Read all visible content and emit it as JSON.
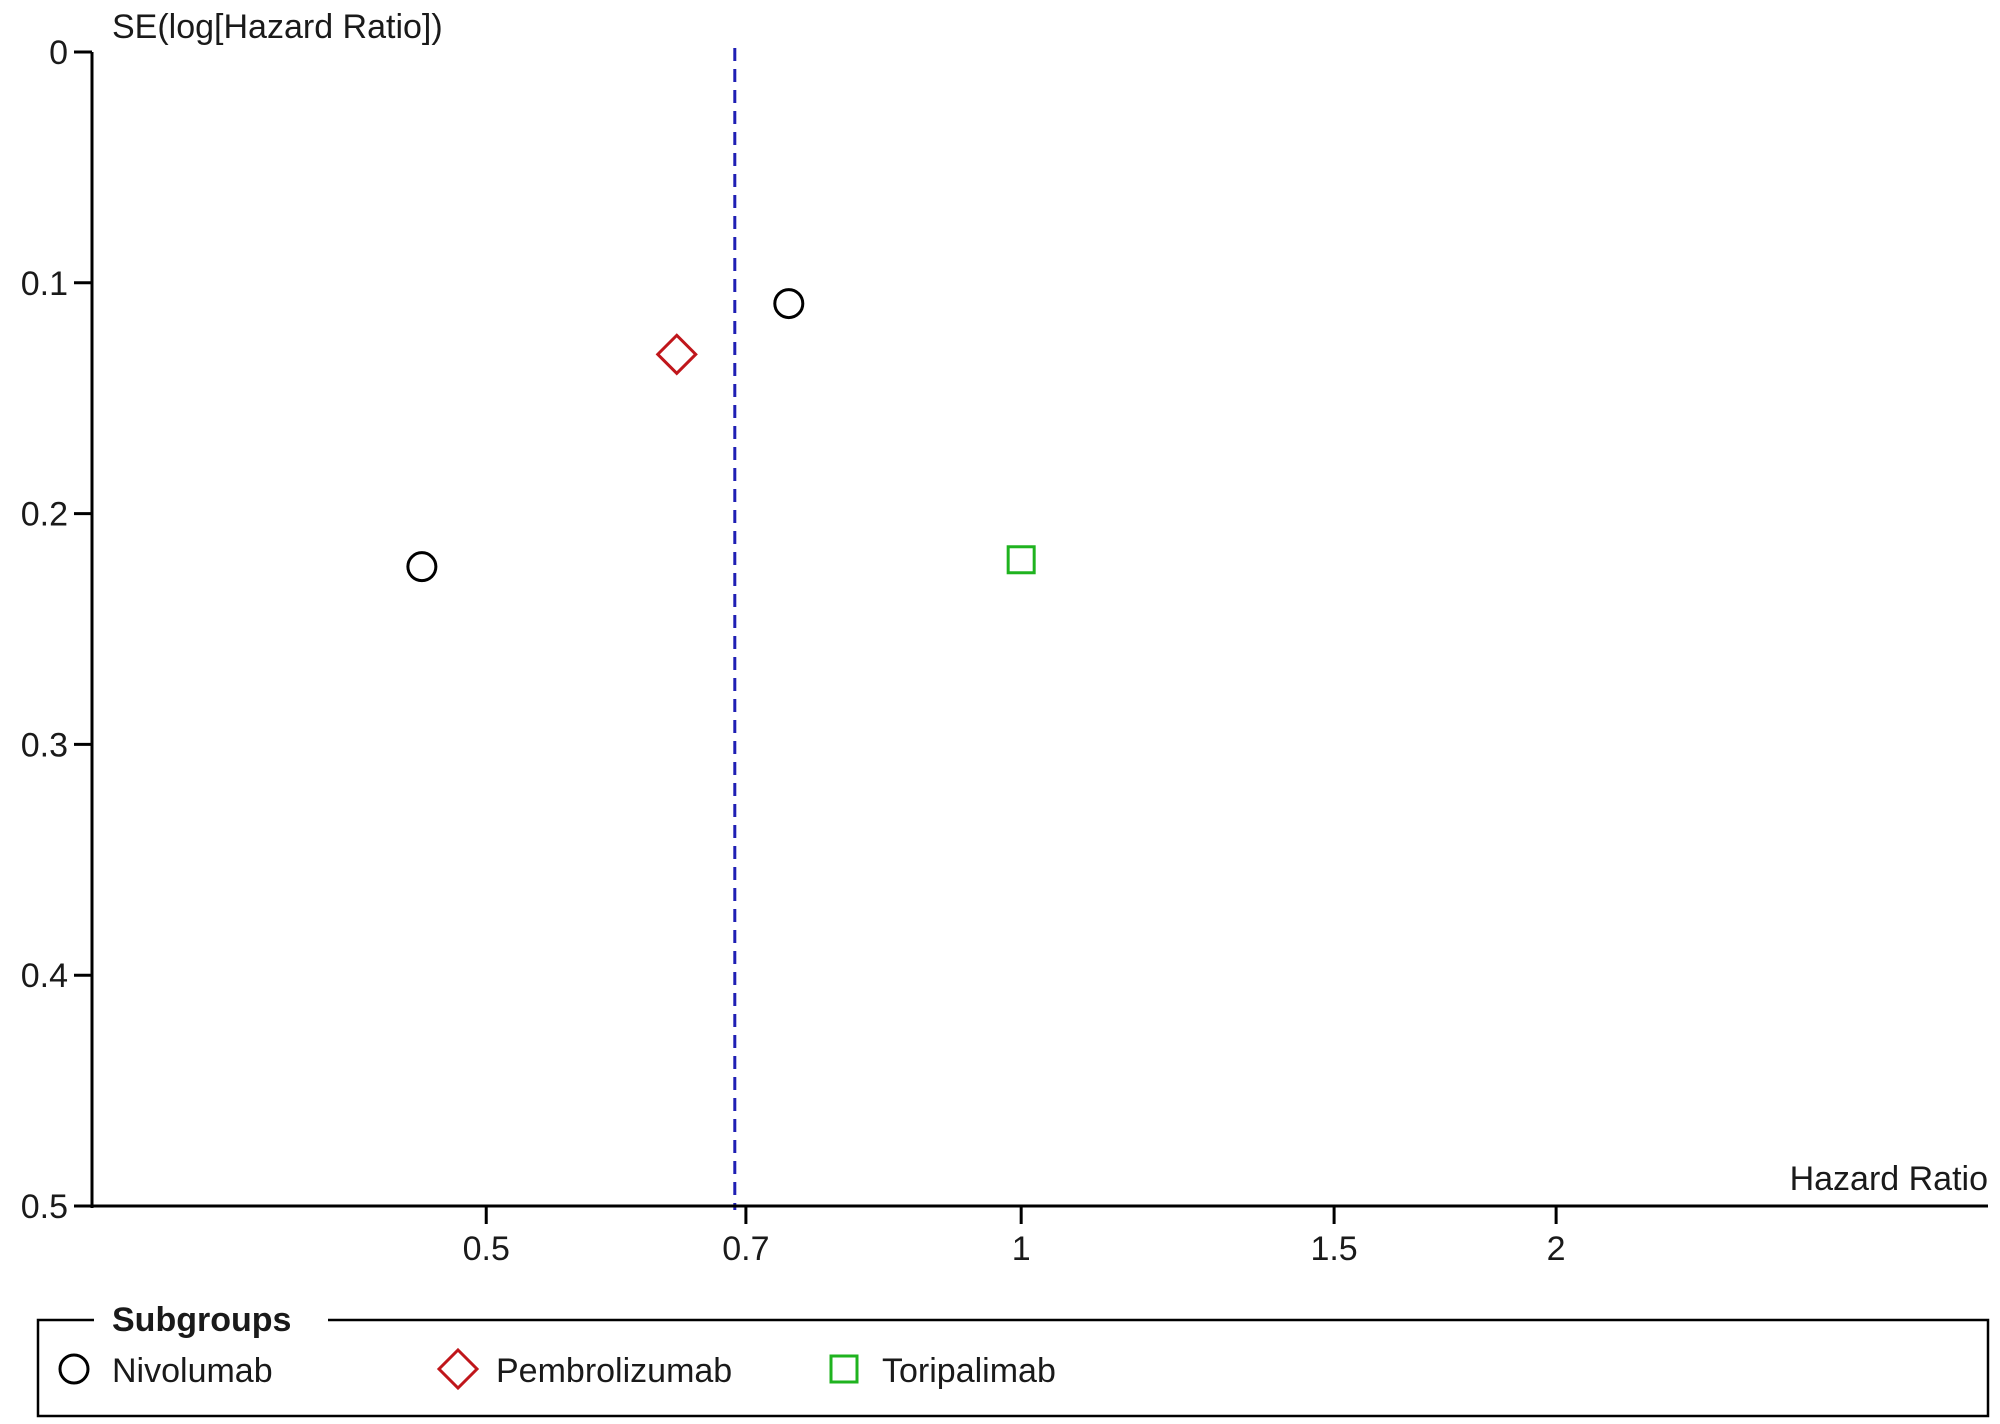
{
  "chart_data": {
    "type": "scatter",
    "subtype": "funnel plot",
    "xlabel": "Hazard Ratio",
    "ylabel": "SE(log[Hazard Ratio])",
    "x_scale": "log",
    "xlim": [
      0.3,
      3.5
    ],
    "ylim": [
      0.5,
      0
    ],
    "y_reversed": true,
    "x_ticks": [
      0.5,
      0.7,
      1,
      1.5,
      2
    ],
    "x_tick_labels": [
      "0.5",
      "0.7",
      "1",
      "1.5",
      "2"
    ],
    "y_ticks": [
      0,
      0.1,
      0.2,
      0.3,
      0.4,
      0.5
    ],
    "y_tick_labels": [
      "0",
      "0.1",
      "0.2",
      "0.3",
      "0.4",
      "0.5"
    ],
    "reference_line": {
      "x": 0.69,
      "style": "dashed",
      "color": "#1f1fb4"
    },
    "grid": false,
    "legend": {
      "title": "Subgroups",
      "placement": "bottom"
    },
    "series": [
      {
        "name": "Nivolumab",
        "marker": "circle",
        "color": "#000000",
        "points": [
          {
            "x": 0.74,
            "y": 0.109
          },
          {
            "x": 0.46,
            "y": 0.223
          }
        ]
      },
      {
        "name": "Pembrolizumab",
        "marker": "diamond",
        "color": "#c0161b",
        "points": [
          {
            "x": 0.64,
            "y": 0.131
          }
        ]
      },
      {
        "name": "Toripalimab",
        "marker": "square",
        "color": "#1fb31f",
        "points": [
          {
            "x": 1.0,
            "y": 0.22
          }
        ]
      }
    ]
  }
}
